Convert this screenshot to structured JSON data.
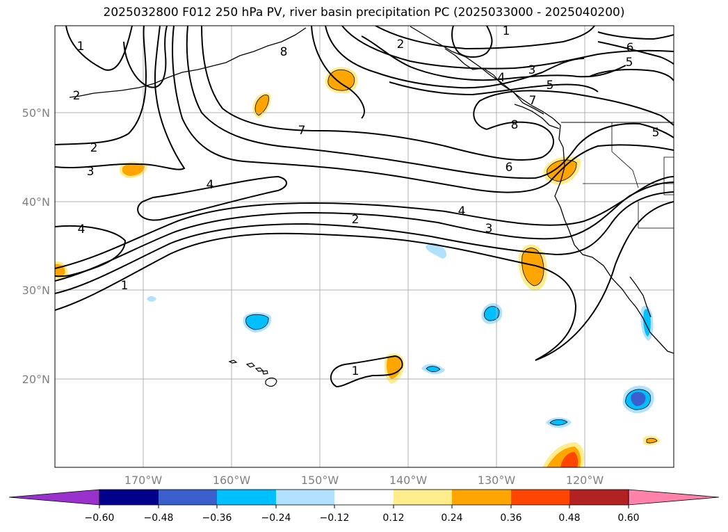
{
  "title": "2025032800 F012 250 hPa PV, river basin precipitation PC (2025033000 - 2025040200)",
  "map": {
    "lat_ticks": [
      "50°N",
      "40°N",
      "30°N",
      "20°N"
    ],
    "lon_ticks": [
      "170°W",
      "160°W",
      "150°W",
      "140°W",
      "130°W",
      "120°W"
    ],
    "contour_labels": [
      {
        "id": "a",
        "text": "1"
      },
      {
        "id": "b",
        "text": "2"
      },
      {
        "id": "c",
        "text": "2"
      },
      {
        "id": "d",
        "text": "3"
      },
      {
        "id": "e",
        "text": "4"
      },
      {
        "id": "f",
        "text": "4"
      },
      {
        "id": "g",
        "text": "1"
      },
      {
        "id": "h",
        "text": "7"
      },
      {
        "id": "i",
        "text": "2"
      },
      {
        "id": "j",
        "text": "4"
      },
      {
        "id": "k",
        "text": "3"
      },
      {
        "id": "l",
        "text": "2"
      },
      {
        "id": "m",
        "text": "1"
      },
      {
        "id": "n",
        "text": "3"
      },
      {
        "id": "o",
        "text": "4"
      },
      {
        "id": "p",
        "text": "5"
      },
      {
        "id": "q",
        "text": "7"
      },
      {
        "id": "r",
        "text": "8"
      },
      {
        "id": "s",
        "text": "6"
      },
      {
        "id": "t",
        "text": "6"
      },
      {
        "id": "u",
        "text": "5"
      },
      {
        "id": "v",
        "text": "5"
      },
      {
        "id": "w",
        "text": "1"
      },
      {
        "id": "x",
        "text": "8"
      }
    ]
  },
  "colorbar": {
    "ticks": [
      "−0.60",
      "−0.48",
      "−0.36",
      "−0.24",
      "−0.12",
      "0.12",
      "0.24",
      "0.36",
      "0.48",
      "0.60"
    ],
    "colors": [
      "#9932cc",
      "#00008b",
      "#3a5fcd",
      "#00bfff",
      "#b0e2ff",
      "#ffffff",
      "#ffec8b",
      "#ffa500",
      "#ff4500",
      "#b22222",
      "#ff82ab"
    ]
  }
}
